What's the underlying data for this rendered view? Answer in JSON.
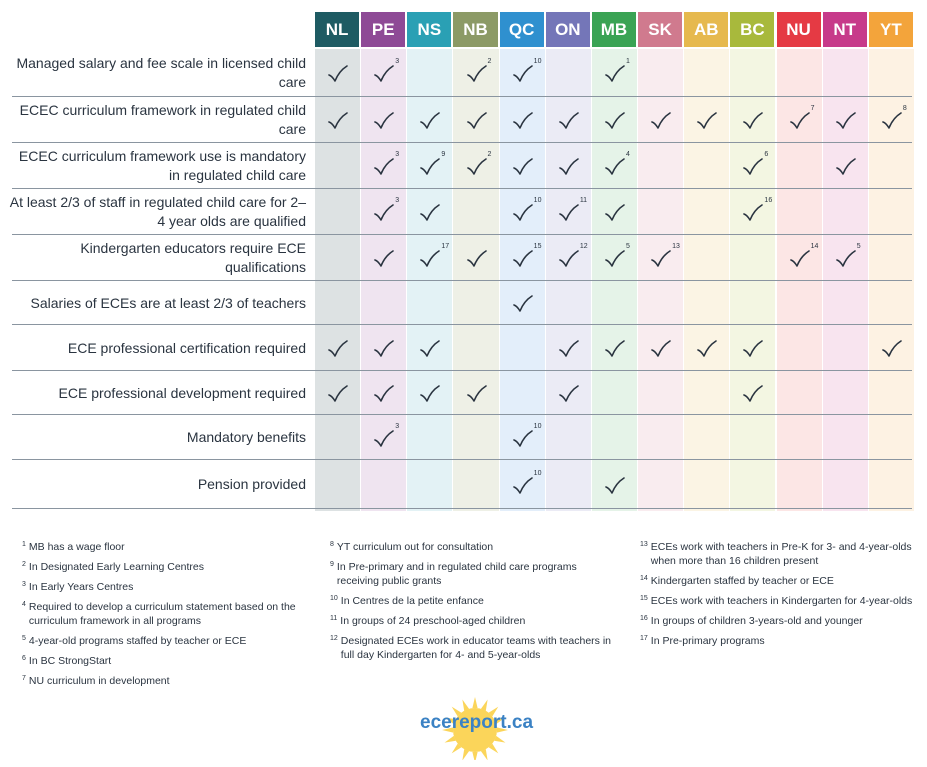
{
  "provinces": [
    {
      "code": "NL",
      "header": "#1e5b63",
      "bg": "#dde2e3"
    },
    {
      "code": "PE",
      "header": "#8e4a96",
      "bg": "#efe4f0"
    },
    {
      "code": "NS",
      "header": "#2aa0b4",
      "bg": "#e3f2f5"
    },
    {
      "code": "NB",
      "header": "#8c9a66",
      "bg": "#eef0e6"
    },
    {
      "code": "QC",
      "header": "#2f90cf",
      "bg": "#e3eefa"
    },
    {
      "code": "ON",
      "header": "#7476b8",
      "bg": "#ebebf5"
    },
    {
      "code": "MB",
      "header": "#3aa354",
      "bg": "#e5f3e8"
    },
    {
      "code": "SK",
      "header": "#d07a8e",
      "bg": "#f9ecef"
    },
    {
      "code": "AB",
      "header": "#e6b94e",
      "bg": "#fbf4e4"
    },
    {
      "code": "BC",
      "header": "#a8b93c",
      "bg": "#f3f6e2"
    },
    {
      "code": "NU",
      "header": "#e53a44",
      "bg": "#fce6e5"
    },
    {
      "code": "NT",
      "header": "#c73a8a",
      "bg": "#f8e4ef"
    },
    {
      "code": "YT",
      "header": "#f3a43b",
      "bg": "#fdf2e3"
    }
  ],
  "rows": [
    {
      "label": "Managed salary and fee scale in licensed child care",
      "checks": {
        "NL": "",
        "PE": "3",
        "NB": "2",
        "QC": "10",
        "MB": "1"
      }
    },
    {
      "label": "ECEC curriculum framework in regulated child care",
      "checks": {
        "NL": "",
        "PE": "",
        "NS": "",
        "NB": "",
        "QC": "",
        "ON": "",
        "MB": "",
        "SK": "",
        "AB": "",
        "BC": "",
        "NU": "7",
        "NT": "",
        "YT": "8"
      }
    },
    {
      "label": "ECEC curriculum framework use is mandatory in regulated child care",
      "checks": {
        "PE": "3",
        "NS": "9",
        "NB": "2",
        "QC": "",
        "ON": "",
        "MB": "4",
        "BC": "6",
        "NT": ""
      }
    },
    {
      "label": "At least 2/3 of staff in regulated child care for 2–4 year olds are qualified",
      "checks": {
        "PE": "3",
        "NS": "",
        "QC": "10",
        "ON": "11",
        "MB": "",
        "BC": "16"
      }
    },
    {
      "label": "Kindergarten educators require ECE qualifications",
      "checks": {
        "PE": "",
        "NS": "17",
        "NB": "",
        "QC": "15",
        "ON": "12",
        "MB": "5",
        "SK": "13",
        "NU": "14",
        "NT": "5"
      }
    },
    {
      "label": "Salaries of ECEs are at least 2/3 of teachers",
      "checks": {
        "QC": ""
      }
    },
    {
      "label": "ECE professional certification required",
      "checks": {
        "NL": "",
        "PE": "",
        "NS": "",
        "ON": "",
        "MB": "",
        "SK": "",
        "AB": "",
        "BC": "",
        "YT": ""
      }
    },
    {
      "label": "ECE professional development required",
      "checks": {
        "NL": "",
        "PE": "",
        "NS": "",
        "NB": "",
        "ON": "",
        "BC": ""
      }
    },
    {
      "label": "Mandatory benefits",
      "checks": {
        "PE": "3",
        "QC": "10"
      }
    },
    {
      "label": "Pension provided",
      "checks": {
        "QC": "10",
        "MB": ""
      }
    }
  ],
  "notes": {
    "col1": [
      {
        "num": "1",
        "text": "MB has a wage floor"
      },
      {
        "num": "2",
        "text": "In Designated Early Learning Centres"
      },
      {
        "num": "3",
        "text": "In Early Years Centres"
      },
      {
        "num": "4",
        "text": "Required to develop a curriculum statement based on the curriculum framework in all programs"
      },
      {
        "num": "5",
        "text": "4-year-old programs staffed by teacher or ECE"
      },
      {
        "num": "6",
        "text": "In BC StrongStart"
      },
      {
        "num": "7",
        "text": "NU curriculum in development"
      }
    ],
    "col2": [
      {
        "num": "8",
        "text": "YT curriculum out for consultation"
      },
      {
        "num": "9",
        "text": "In Pre-primary and in regulated child care programs receiving public grants"
      },
      {
        "num": "10",
        "text": "In Centres de la petite enfance"
      },
      {
        "num": "11",
        "text": "In groups of 24 preschool-aged children"
      },
      {
        "num": "12",
        "text": "Designated ECEs work in educator teams with teachers in full day Kindergarten for 4- and 5-year-olds"
      }
    ],
    "col3": [
      {
        "num": "13",
        "text": "ECEs work with teachers in Pre-K for 3- and 4-year-olds when more than 16 children present"
      },
      {
        "num": "14",
        "text": "Kindergarten staffed by teacher or ECE"
      },
      {
        "num": "15",
        "text": "ECEs work with teachers in Kindergarten for 4-year-olds"
      },
      {
        "num": "16",
        "text": "In groups of children 3-years-old and younger"
      },
      {
        "num": "17",
        "text": "In Pre-primary programs"
      }
    ]
  },
  "logo": {
    "text": "ecereport.ca",
    "text_color": "#3b82c4",
    "sun_color": "#fbd55a"
  }
}
